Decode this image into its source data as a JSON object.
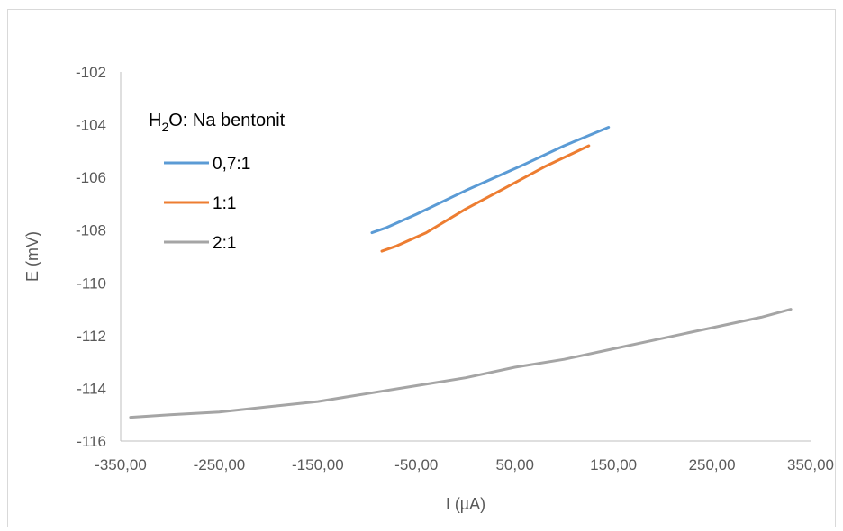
{
  "chart_data": {
    "type": "line",
    "xlabel": "I (µA)",
    "ylabel": "E (mV)",
    "xlim": [
      -350,
      350
    ],
    "ylim": [
      -116,
      -102
    ],
    "x_ticks": [
      -350,
      -250,
      -150,
      -50,
      50,
      150,
      250,
      350
    ],
    "x_tick_labels": [
      "-350,00",
      "-250,00",
      "-150,00",
      "-50,00",
      "50,00",
      "150,00",
      "250,00",
      "350,00"
    ],
    "y_ticks": [
      -102,
      -104,
      -106,
      -108,
      -110,
      -112,
      -114,
      -116
    ],
    "y_tick_labels": [
      "-102",
      "-104",
      "-106",
      "-108",
      "-110",
      "-112",
      "-114",
      "-116"
    ],
    "grid": false,
    "legend": {
      "title_main": "H",
      "title_sub": "2",
      "title_rest": "O: Na bentonit",
      "placement": "top-left"
    },
    "series": [
      {
        "name": "0,7:1",
        "color": "#5B9BD5",
        "x": [
          -95,
          -80,
          -50,
          0,
          60,
          100,
          145
        ],
        "y": [
          -108.1,
          -107.9,
          -107.4,
          -106.5,
          -105.5,
          -104.8,
          -104.1
        ]
      },
      {
        "name": "1:1",
        "color": "#ED7D31",
        "x": [
          -85,
          -70,
          -40,
          0,
          40,
          80,
          125
        ],
        "y": [
          -108.8,
          -108.6,
          -108.1,
          -107.2,
          -106.4,
          -105.6,
          -104.8
        ]
      },
      {
        "name": "2:1",
        "color": "#A5A5A5",
        "x": [
          -340,
          -300,
          -250,
          -200,
          -150,
          -100,
          -50,
          0,
          50,
          100,
          150,
          200,
          250,
          300,
          330
        ],
        "y": [
          -115.1,
          -115.0,
          -114.9,
          -114.7,
          -114.5,
          -114.2,
          -113.9,
          -113.6,
          -113.2,
          -112.9,
          -112.5,
          -112.1,
          -111.7,
          -111.3,
          -111.0
        ]
      }
    ]
  }
}
